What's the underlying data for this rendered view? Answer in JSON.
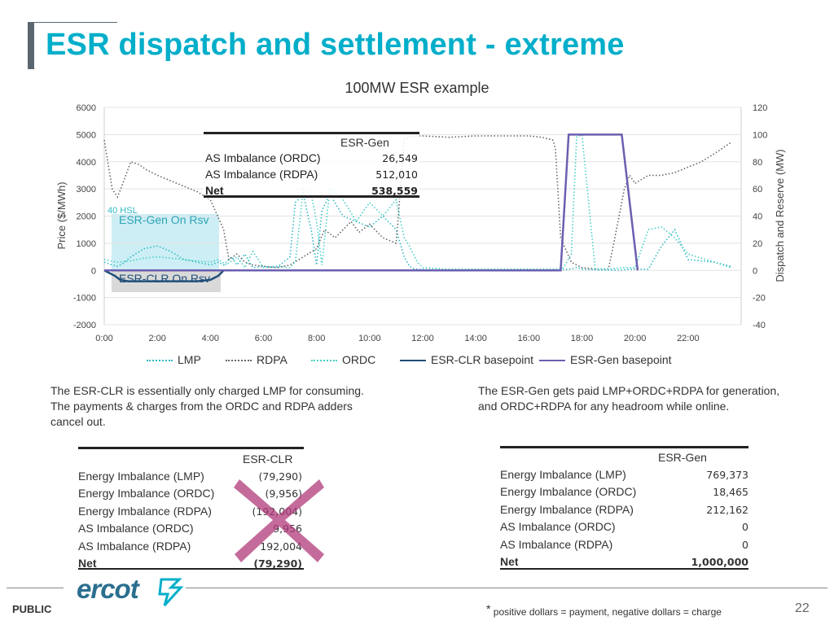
{
  "title": "ESR dispatch and settlement - extreme",
  "chart_data": {
    "type": "line",
    "title": "100MW ESR example",
    "ylabel": "Price ($/MWh)",
    "y2label": "Dispatch and Reserve (MW)",
    "x_ticks": [
      "0:00",
      "2:00",
      "4:00",
      "6:00",
      "8:00",
      "10:00",
      "12:00",
      "14:00",
      "16:00",
      "18:00",
      "20:00",
      "22:00"
    ],
    "y_ticks": [
      "6000",
      "5000",
      "4000",
      "3000",
      "2000",
      "1000",
      "0",
      "-1000",
      "-2000"
    ],
    "y2_ticks": [
      "120",
      "100",
      "80",
      "60",
      "40",
      "20",
      "0",
      "-20",
      "-40"
    ],
    "ylim": [
      -2000,
      6000
    ],
    "y2lim": [
      -40,
      120
    ],
    "x_hours": [
      0,
      24
    ],
    "series": [
      {
        "name": "LMP",
        "style": "dotted",
        "color": "#2fb8c4",
        "axis": "price",
        "x": [
          0,
          0.3,
          0.5,
          0.7,
          1,
          1.5,
          2,
          2.5,
          3,
          3.5,
          4,
          4.3,
          4.5,
          4.8,
          5,
          5.3,
          5.6,
          6,
          6.5,
          7,
          7.2,
          7.5,
          7.8,
          8,
          8.2,
          8.5,
          9,
          9.5,
          10,
          10.5,
          11,
          11.3,
          11.5,
          11.7,
          12,
          13,
          14,
          15,
          16,
          17,
          17.4,
          17.6,
          17.8,
          18,
          18.5,
          19,
          19.5,
          20,
          20.5,
          21,
          21.5,
          22,
          23,
          23.6
        ],
        "y": [
          300,
          200,
          150,
          250,
          500,
          800,
          900,
          700,
          400,
          300,
          200,
          300,
          200,
          500,
          200,
          600,
          100,
          150,
          100,
          500,
          2500,
          2800,
          1500,
          200,
          2200,
          2800,
          2000,
          1800,
          1600,
          2000,
          1500,
          500,
          150,
          50,
          30,
          20,
          20,
          20,
          20,
          20,
          30,
          50,
          100,
          50,
          20,
          10,
          20,
          50,
          40,
          900,
          1500,
          400,
          300,
          150
        ]
      },
      {
        "name": "RDPA",
        "style": "dotted",
        "color": "#666666",
        "axis": "price",
        "x": [
          0,
          0.3,
          0.5,
          0.7,
          1,
          1.3,
          1.6,
          2,
          2.5,
          3,
          3.5,
          4,
          4.5,
          4.7,
          5,
          5.3,
          5.6,
          6,
          6.5,
          7,
          7.5,
          8,
          8.3,
          8.7,
          9,
          9.3,
          9.6,
          10,
          10.5,
          11,
          11.3,
          11.5,
          11.7,
          12,
          13,
          14,
          15,
          16,
          16.5,
          16.9,
          17,
          17.2,
          17.6,
          18,
          18.5,
          19,
          19.2,
          19.4,
          19.6,
          19.8,
          20,
          20.5,
          21,
          21.5,
          22,
          22.5,
          23,
          23.6
        ],
        "y": [
          4800,
          3000,
          2700,
          3200,
          4000,
          3900,
          3700,
          3500,
          3300,
          3100,
          2900,
          2600,
          1500,
          400,
          600,
          300,
          200,
          150,
          100,
          200,
          500,
          800,
          1500,
          1200,
          1500,
          1800,
          1400,
          1700,
          1200,
          1000,
          4800,
          4900,
          4950,
          4950,
          4900,
          4950,
          4950,
          4950,
          4900,
          4800,
          4500,
          1200,
          300,
          100,
          50,
          50,
          1000,
          2000,
          3000,
          3500,
          3200,
          3500,
          3500,
          3600,
          3800,
          4000,
          4300,
          4700
        ]
      },
      {
        "name": "ORDC",
        "style": "dotted",
        "color": "#45cfc6",
        "axis": "price",
        "x": [
          0,
          0.5,
          1,
          1.5,
          2,
          2.5,
          3,
          3.5,
          4,
          4.3,
          4.6,
          5,
          5.3,
          5.6,
          6,
          6.5,
          7,
          7.2,
          7.5,
          7.8,
          8,
          8.2,
          8.5,
          9,
          9.5,
          10,
          10.5,
          11,
          11.3,
          11.5,
          11.8,
          12,
          13,
          14,
          15,
          16,
          17,
          17.3,
          17.6,
          17.8,
          18,
          18.5,
          19,
          19.5,
          20,
          20.5,
          21,
          21.5,
          22,
          23,
          23.6
        ],
        "y": [
          400,
          300,
          350,
          450,
          500,
          450,
          400,
          350,
          300,
          400,
          200,
          500,
          100,
          700,
          100,
          150,
          100,
          300,
          3000,
          2800,
          1800,
          200,
          3000,
          2600,
          1800,
          2500,
          2000,
          2600,
          1200,
          900,
          300,
          100,
          50,
          50,
          50,
          50,
          50,
          100,
          600,
          4900,
          5000,
          50,
          50,
          100,
          100,
          1500,
          1600,
          1200,
          600,
          300,
          100
        ]
      },
      {
        "name": "ESR-CLR basepoint",
        "style": "solid",
        "color": "#1f4e79",
        "axis": "mw",
        "x": [
          0,
          0.4,
          0.6,
          0.9,
          3.5,
          4,
          4.3,
          4.5
        ],
        "y": [
          0,
          -4,
          -7,
          -8,
          -8,
          -7,
          -4,
          0
        ]
      },
      {
        "name": "ESR-Gen basepoint",
        "style": "solid",
        "color": "#6a5fb0",
        "axis": "mw",
        "x": [
          0,
          16.7,
          17.2,
          17.5,
          19.3,
          19.5,
          20.1
        ],
        "y": [
          0,
          0,
          0,
          100,
          100,
          100,
          0
        ]
      }
    ]
  },
  "chart_annotations": {
    "hsl_label": "40 HSL",
    "gen_rsv_label": "ESR-Gen On Rsv",
    "clr_rsv_label": "ESR-CLR On Rsv"
  },
  "overlay_table": {
    "header": "ESR-Gen",
    "rows": [
      {
        "label": "AS Imbalance (ORDC)",
        "value": "26,549",
        "bold": false
      },
      {
        "label": "AS Imbalance (RDPA)",
        "value": "512,010",
        "bold": false
      },
      {
        "label": "Net",
        "value": "538,559",
        "bold": true
      }
    ]
  },
  "notes": {
    "left": "The ESR-CLR is essentially only charged LMP for consuming. The payments & charges from the ORDC and RDPA adders cancel out.",
    "right": "The ESR-Gen gets paid LMP+ORDC+RDPA for generation, and ORDC+RDPA for any headroom while online."
  },
  "tables": {
    "clr": {
      "header": "ESR-CLR",
      "rows": [
        {
          "label": "Energy Imbalance (LMP)",
          "value": "(79,290)",
          "bold": false
        },
        {
          "label": "Energy Imbalance (ORDC)",
          "value": "(9,956)",
          "bold": false
        },
        {
          "label": "Energy Imbalance (RDPA)",
          "value": "(192,004)",
          "bold": false
        },
        {
          "label": "AS Imbalance (ORDC)",
          "value": "9,956",
          "bold": false
        },
        {
          "label": "AS Imbalance (RDPA)",
          "value": "192,004",
          "bold": false
        },
        {
          "label": "Net",
          "value": "(79,290)",
          "bold": true
        }
      ]
    },
    "gen": {
      "header": "ESR-Gen",
      "rows": [
        {
          "label": "Energy Imbalance (LMP)",
          "value": "769,373",
          "bold": false
        },
        {
          "label": "Energy Imbalance (ORDC)",
          "value": "18,465",
          "bold": false
        },
        {
          "label": "Energy Imbalance (RDPA)",
          "value": "212,162",
          "bold": false
        },
        {
          "label": "AS Imbalance (ORDC)",
          "value": "0",
          "bold": false
        },
        {
          "label": "AS Imbalance (RDPA)",
          "value": "0",
          "bold": false
        },
        {
          "label": "Net",
          "value": "1,000,000",
          "bold": true
        }
      ]
    }
  },
  "footer": {
    "logo_text": "ercot",
    "classification": "PUBLIC",
    "footnote_star": "*",
    "footnote": "positive dollars = payment, negative dollars = charge",
    "page_number": "22"
  },
  "colors": {
    "title": "#00aeca",
    "clr_basepoint": "#1f4e79",
    "gen_basepoint": "#6a5fb0",
    "lmp": "#2fb8c4",
    "ordc": "#45cfc6",
    "rdpa": "#666666",
    "cross": "#b03a7a",
    "rsv_highlight": "#cdeef5"
  }
}
